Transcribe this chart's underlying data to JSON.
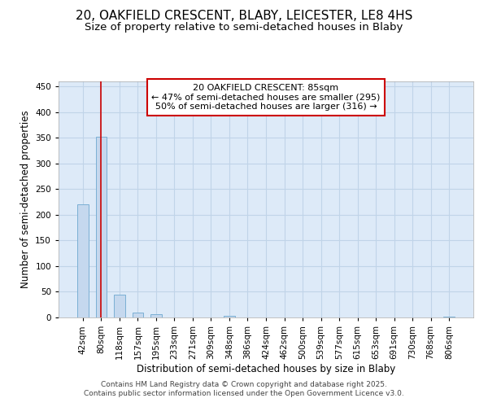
{
  "title_line1": "20, OAKFIELD CRESCENT, BLABY, LEICESTER, LE8 4HS",
  "title_line2": "Size of property relative to semi-detached houses in Blaby",
  "xlabel": "Distribution of semi-detached houses by size in Blaby",
  "ylabel": "Number of semi-detached properties",
  "categories": [
    "42sqm",
    "80sqm",
    "118sqm",
    "157sqm",
    "195sqm",
    "233sqm",
    "271sqm",
    "309sqm",
    "348sqm",
    "386sqm",
    "424sqm",
    "462sqm",
    "500sqm",
    "539sqm",
    "577sqm",
    "615sqm",
    "653sqm",
    "691sqm",
    "730sqm",
    "768sqm",
    "806sqm"
  ],
  "values": [
    220,
    352,
    45,
    10,
    7,
    0,
    0,
    0,
    3,
    0,
    0,
    0,
    0,
    0,
    0,
    0,
    0,
    0,
    0,
    0,
    2
  ],
  "bar_color": "#c5d8ee",
  "bar_edge_color": "#7aafd4",
  "grid_color": "#c0d4e8",
  "background_color": "#ddeaf8",
  "annotation_box_text": "20 OAKFIELD CRESCENT: 85sqm\n← 47% of semi-detached houses are smaller (295)\n50% of semi-detached houses are larger (316) →",
  "annotation_box_color": "#ffffff",
  "annotation_box_edge_color": "#cc0000",
  "property_line_x": 0.97,
  "ylim": [
    0,
    460
  ],
  "yticks": [
    0,
    50,
    100,
    150,
    200,
    250,
    300,
    350,
    400,
    450
  ],
  "footer_text": "Contains HM Land Registry data © Crown copyright and database right 2025.\nContains public sector information licensed under the Open Government Licence v3.0.",
  "title_fontsize": 11,
  "subtitle_fontsize": 9.5,
  "axis_label_fontsize": 8.5,
  "tick_fontsize": 7.5,
  "annotation_fontsize": 8,
  "footer_fontsize": 6.5
}
